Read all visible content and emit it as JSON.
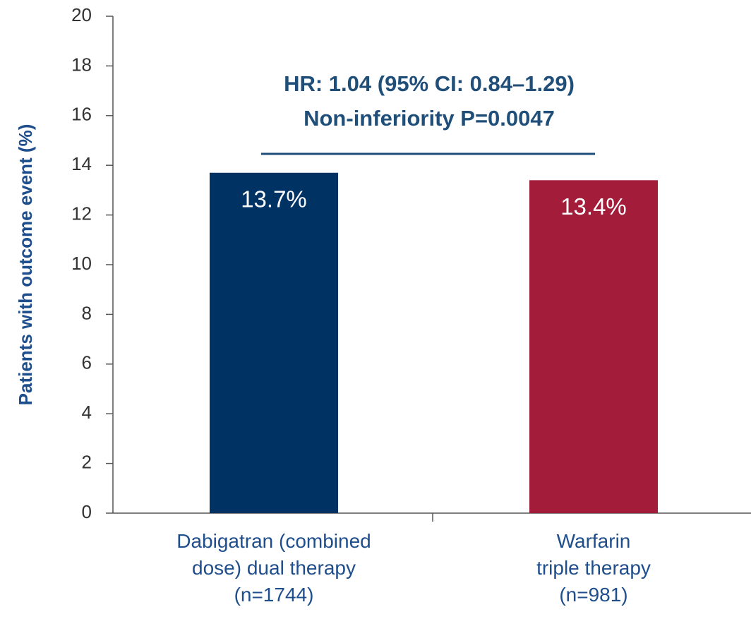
{
  "chart_data": {
    "type": "bar",
    "ylabel": "Patients with outcome event (%)",
    "annotation": [
      "HR: 1.04 (95% CI: 0.84–1.29)",
      "Non-inferiority P=0.0047"
    ],
    "categories": [
      "Dabigatran (combined\ndose) dual therapy\n(n=1744)",
      "Warfarin\ntriple therapy\n(n=981)"
    ],
    "values": [
      13.7,
      13.4
    ],
    "value_labels": [
      "13.7%",
      "13.4%"
    ],
    "colors": [
      "#003263",
      "#a31c3a"
    ],
    "ylim": [
      0,
      20
    ],
    "yticks": [
      0,
      2,
      4,
      6,
      8,
      10,
      12,
      14,
      16,
      18,
      20
    ],
    "grid": false
  }
}
